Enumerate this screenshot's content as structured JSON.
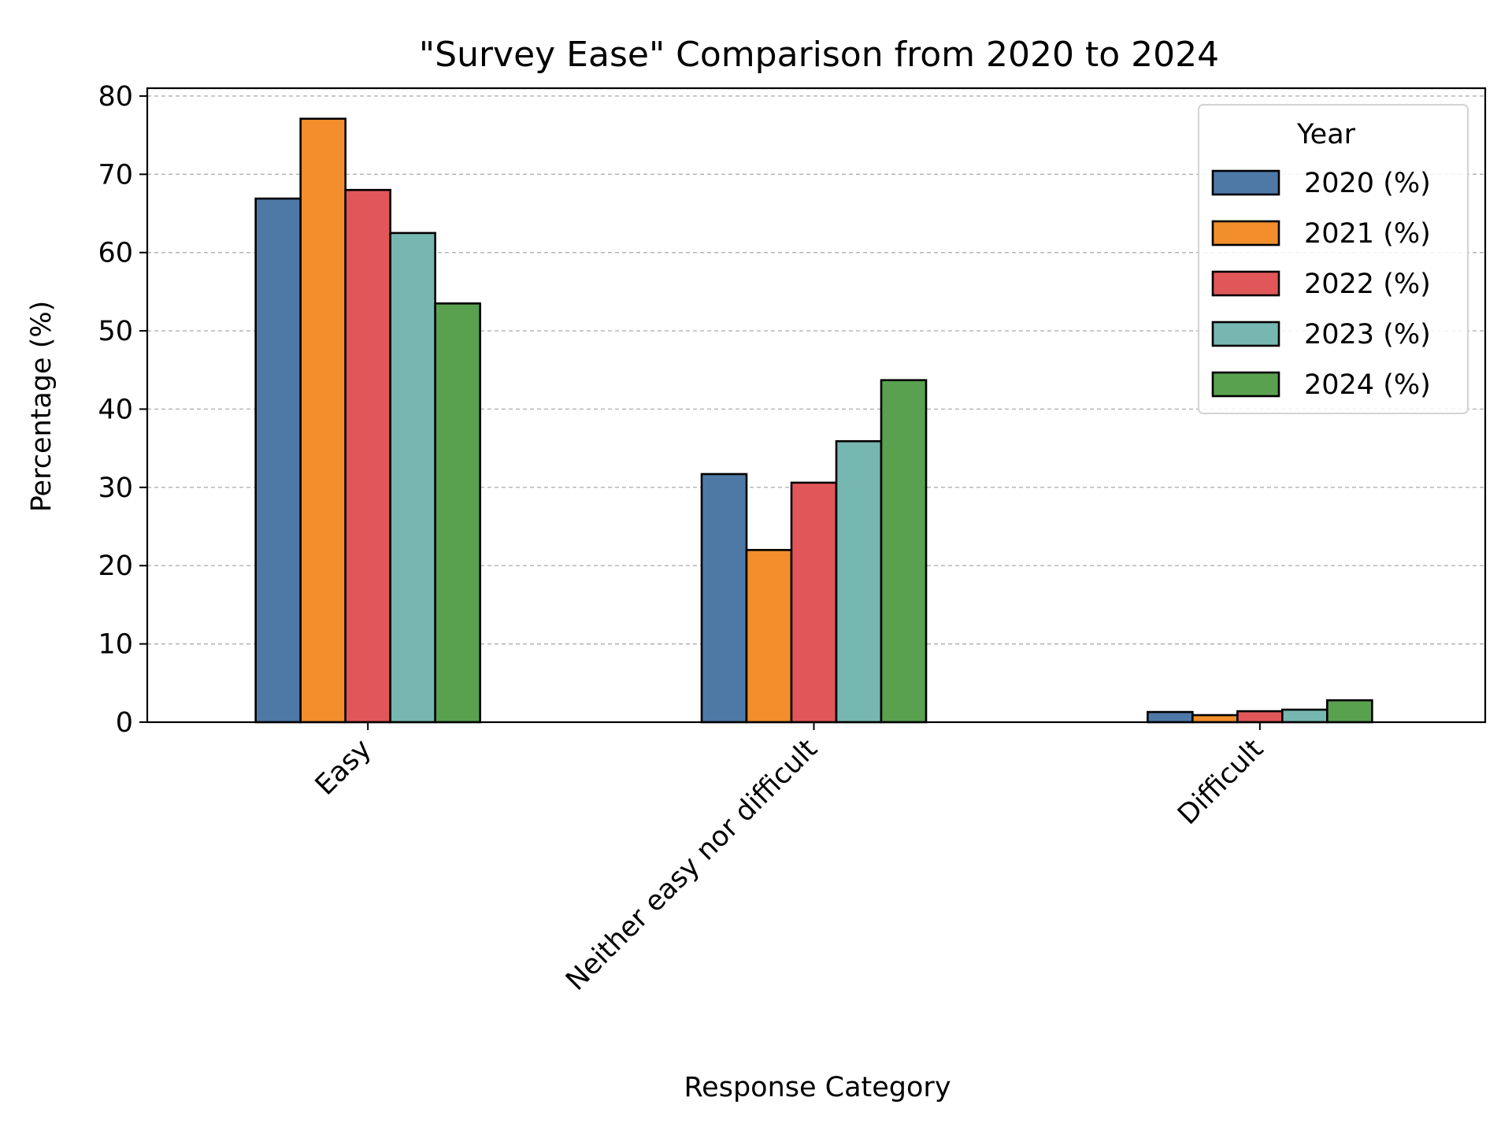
{
  "chart_data": {
    "type": "bar",
    "title": "\"Survey Ease\" Comparison from 2020 to 2024",
    "xlabel": "Response Category",
    "ylabel": "Percentage (%)",
    "categories": [
      "Easy",
      "Neither easy nor difficult",
      "Difficult"
    ],
    "series": [
      {
        "name": "2020 (%)",
        "color": "#4e79a7",
        "values": [
          66.9,
          31.7,
          1.3
        ]
      },
      {
        "name": "2021 (%)",
        "color": "#f28e2b",
        "values": [
          77.1,
          22.0,
          0.9
        ]
      },
      {
        "name": "2022 (%)",
        "color": "#e15759",
        "values": [
          68.0,
          30.6,
          1.4
        ]
      },
      {
        "name": "2023 (%)",
        "color": "#76b7b2",
        "values": [
          62.5,
          35.9,
          1.6
        ]
      },
      {
        "name": "2024 (%)",
        "color": "#59a14f",
        "values": [
          53.5,
          43.7,
          2.8
        ]
      }
    ],
    "ylim": [
      0,
      81
    ],
    "yticks": [
      0,
      10,
      20,
      30,
      40,
      50,
      60,
      70,
      80
    ],
    "grid": "y-dashed",
    "legend": {
      "title": "Year",
      "position": "top-right"
    }
  }
}
